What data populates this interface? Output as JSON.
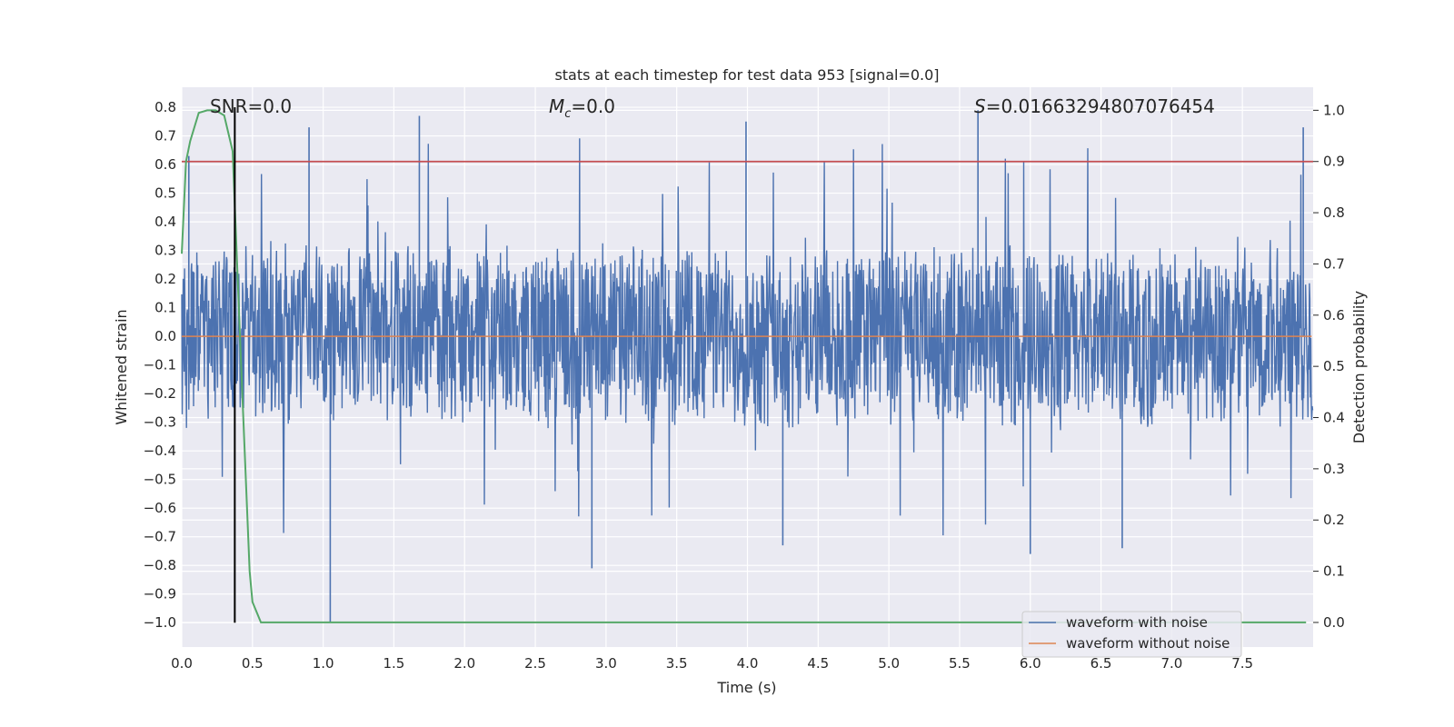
{
  "chart_data": {
    "type": "line",
    "title": "stats at each timestep for test data 953 [signal=0.0]",
    "xlabel": "Time (s)",
    "ylabel": "Whitened strain",
    "y2label": "Detection probability",
    "xlim": [
      0.0,
      8.0
    ],
    "ylim": [
      -1.085,
      0.87
    ],
    "y2lim": [
      -0.048,
      1.045
    ],
    "grid": true,
    "legend_position": "lower-right",
    "x_ticks": [
      "0.0",
      "0.5",
      "1.0",
      "1.5",
      "2.0",
      "2.5",
      "3.0",
      "3.5",
      "4.0",
      "4.5",
      "5.0",
      "5.5",
      "6.0",
      "6.5",
      "7.0",
      "7.5"
    ],
    "y_ticks": [
      "0.8",
      "0.7",
      "0.6",
      "0.5",
      "0.4",
      "0.3",
      "0.2",
      "0.1",
      "0.0",
      "−0.1",
      "−0.2",
      "−0.3",
      "−0.4",
      "−0.5",
      "−0.6",
      "−0.7",
      "−0.8",
      "−0.9",
      "−1.0"
    ],
    "y2_ticks": [
      "1.0",
      "0.9",
      "0.8",
      "0.7",
      "0.6",
      "0.5",
      "0.4",
      "0.3",
      "0.2",
      "0.1",
      "0.0"
    ],
    "annotations": {
      "snr": "SNR=0.0",
      "mc_symbol": "M",
      "mc_subscript": "c",
      "mc_value": "=0.0",
      "s_symbol": "S",
      "s_value": "=0.01663294807076454"
    },
    "threshold": {
      "axis": "right",
      "value": 0.9,
      "color": "#c44e52"
    },
    "marker_line": {
      "x": 0.375,
      "color": "#000000"
    },
    "series": [
      {
        "name": "waveform with noise",
        "axis": "left",
        "color": "#4c72b0",
        "note": "dense noise, envelope approx ±0.3 with spikes up to 0.78 and down to -1.0",
        "spikes_up": [
          [
            0.05,
            0.63
          ],
          [
            0.9,
            0.73
          ],
          [
            1.68,
            0.77
          ],
          [
            3.99,
            0.75
          ],
          [
            5.63,
            0.79
          ],
          [
            7.93,
            0.73
          ]
        ],
        "spikes_down": [
          [
            1.05,
            -1.0
          ],
          [
            2.9,
            -0.81
          ],
          [
            4.25,
            -0.73
          ],
          [
            6.0,
            -0.76
          ],
          [
            6.65,
            -0.74
          ]
        ]
      },
      {
        "name": "waveform without noise",
        "axis": "left",
        "color": "#dd8452",
        "x": [
          0.0,
          7.99
        ],
        "y": [
          0.0,
          0.0
        ]
      },
      {
        "name": "Detection probability",
        "axis": "right",
        "color": "#55a868",
        "x": [
          0.0,
          0.03,
          0.06,
          0.12,
          0.18,
          0.24,
          0.3,
          0.36,
          0.42,
          0.48,
          0.5,
          0.56,
          0.6,
          7.95
        ],
        "y": [
          0.72,
          0.9,
          0.94,
          0.995,
          1.0,
          1.0,
          0.99,
          0.92,
          0.5,
          0.1,
          0.04,
          0.0,
          0.0,
          0.0
        ]
      }
    ]
  },
  "legend": {
    "items": [
      {
        "label": "waveform with noise",
        "color": "#4c72b0"
      },
      {
        "label": "waveform without noise",
        "color": "#dd8452"
      }
    ]
  }
}
